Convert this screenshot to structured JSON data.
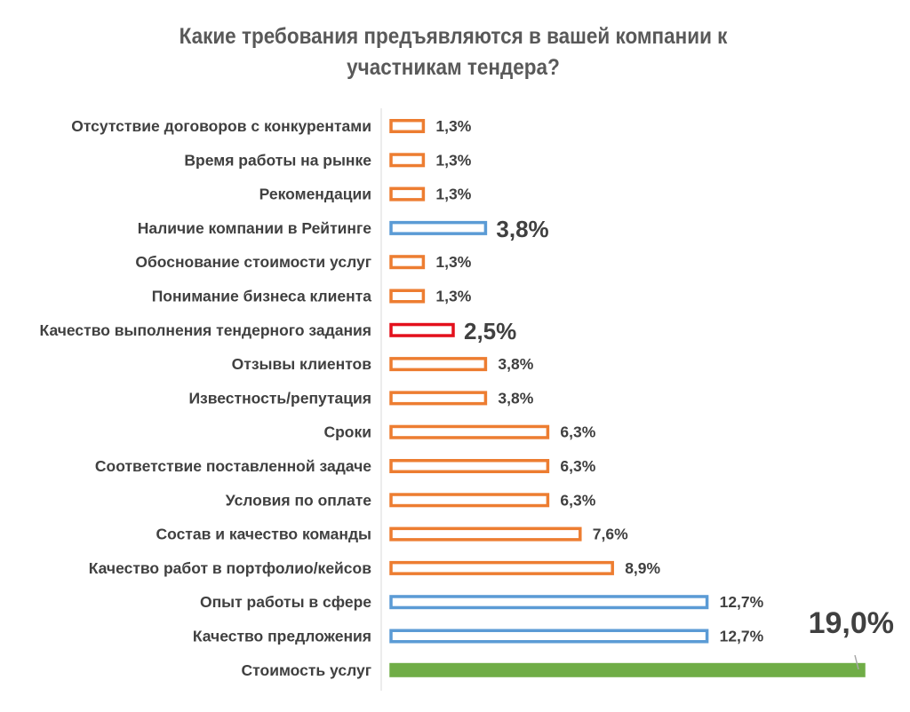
{
  "chart_data": {
    "type": "bar",
    "orientation": "horizontal",
    "title": "Какие требования предъявляются в вашей компании к участникам тендера?",
    "xlabel": "",
    "ylabel": "",
    "xlim": [
      0,
      19.0
    ],
    "grid": false,
    "legend": "none",
    "categories": [
      "Отсутствие договоров с конкурентами",
      "Время работы на рынке",
      "Рекомендации",
      "Наличие компании в Рейтинге",
      "Обоснование стоимости услуг",
      "Понимание бизнеса клиента",
      "Качество выполнения тендерного задания",
      "Отзывы клиентов",
      "Известность/репутация",
      "Сроки",
      "Соответствие поставленной задаче",
      "Условия по оплате",
      "Состав и качество команды",
      "Качество работ в портфолио/кейсов",
      "Опыт работы в сфере",
      "Качество предложения",
      "Стоимость услуг"
    ],
    "values": [
      1.3,
      1.3,
      1.3,
      3.8,
      1.3,
      1.3,
      2.5,
      3.8,
      3.8,
      6.3,
      6.3,
      6.3,
      7.6,
      8.9,
      12.7,
      12.7,
      19.0
    ],
    "value_labels": [
      "1,3%",
      "1,3%",
      "1,3%",
      "3,8%",
      "1,3%",
      "1,3%",
      "2,5%",
      "3,8%",
      "3,8%",
      "6,3%",
      "6,3%",
      "6,3%",
      "7,6%",
      "8,9%",
      "12,7%",
      "12,7%",
      "19,0%"
    ],
    "bar_colors": [
      "#ED7D31",
      "#ED7D31",
      "#ED7D31",
      "#5B9BD5",
      "#ED7D31",
      "#ED7D31",
      "#E3101C",
      "#ED7D31",
      "#ED7D31",
      "#ED7D31",
      "#ED7D31",
      "#ED7D31",
      "#ED7D31",
      "#ED7D31",
      "#5B9BD5",
      "#5B9BD5",
      "#70AD47"
    ],
    "bar_fills": [
      "#FFFFFF",
      "#FFFFFF",
      "#FFFFFF",
      "#FFFFFF",
      "#FFFFFF",
      "#FFFFFF",
      "#FFFFFF",
      "#FFFFFF",
      "#FFFFFF",
      "#FFFFFF",
      "#FFFFFF",
      "#FFFFFF",
      "#FFFFFF",
      "#FFFFFF",
      "#FFFFFF",
      "#FFFFFF",
      "#70AD47"
    ],
    "highlighted": [
      "Наличие компании в Рейтинге",
      "Качество выполнения тендерного задания",
      "Стоимость услуг"
    ]
  }
}
